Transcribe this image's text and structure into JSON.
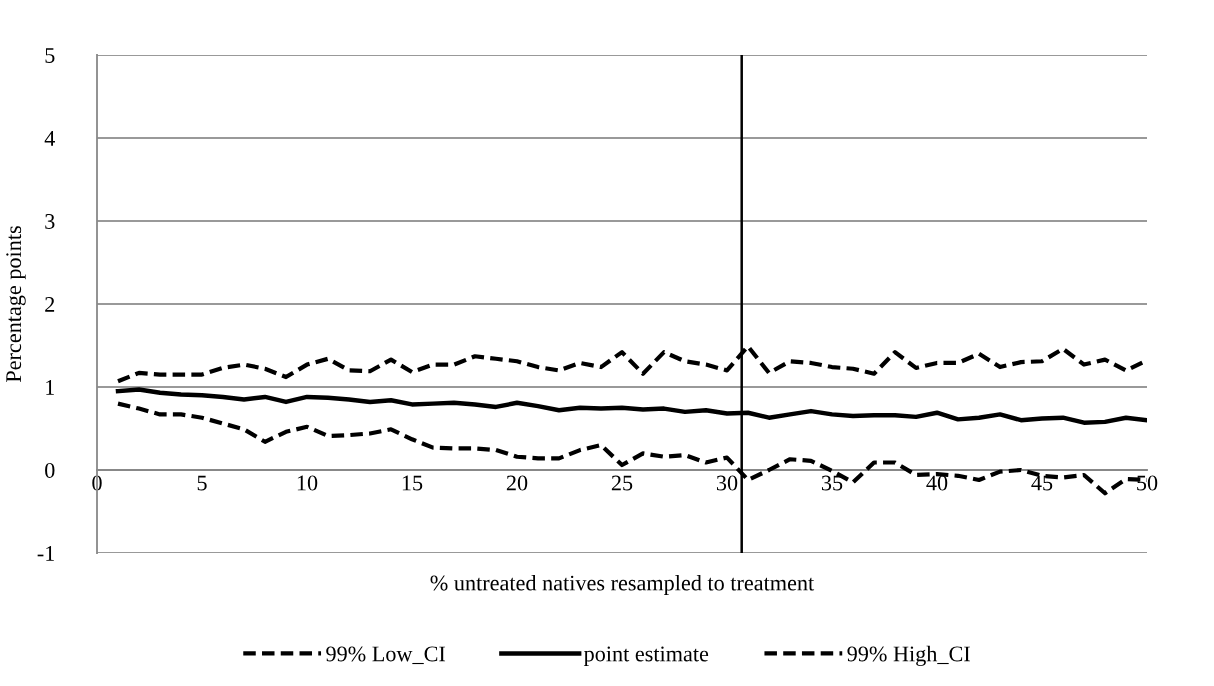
{
  "chart_data": {
    "type": "line",
    "xlabel": "% untreated natives resampled to treatment",
    "ylabel": "Percentage points",
    "x": [
      1,
      2,
      3,
      4,
      5,
      6,
      7,
      8,
      9,
      10,
      11,
      12,
      13,
      14,
      15,
      16,
      17,
      18,
      19,
      20,
      21,
      22,
      23,
      24,
      25,
      26,
      27,
      28,
      29,
      30,
      31,
      32,
      33,
      34,
      35,
      36,
      37,
      38,
      39,
      40,
      41,
      42,
      43,
      44,
      45,
      46,
      47,
      48,
      49,
      50
    ],
    "xlim": [
      0,
      50
    ],
    "xticks": [
      0,
      5,
      10,
      15,
      20,
      25,
      30,
      35,
      40,
      45,
      50
    ],
    "ylim": [
      -1,
      5
    ],
    "yticks": [
      -1,
      0,
      1,
      2,
      3,
      4,
      5
    ],
    "grid": "y",
    "legend": "bottom",
    "series": [
      {
        "name": "99% Low_CI",
        "color": "#000000",
        "line_style": "dashed",
        "values": [
          0.8,
          0.74,
          0.67,
          0.67,
          0.63,
          0.56,
          0.49,
          0.34,
          0.46,
          0.52,
          0.41,
          0.42,
          0.44,
          0.49,
          0.37,
          0.27,
          0.26,
          0.26,
          0.24,
          0.16,
          0.14,
          0.14,
          0.24,
          0.3,
          0.06,
          0.2,
          0.16,
          0.18,
          0.09,
          0.15,
          -0.12,
          0.0,
          0.13,
          0.11,
          -0.01,
          -0.15,
          0.09,
          0.09,
          -0.06,
          -0.05,
          -0.07,
          -0.12,
          -0.02,
          0.0,
          -0.07,
          -0.09,
          -0.06,
          -0.28,
          -0.11,
          -0.12
        ]
      },
      {
        "name": "point estimate",
        "color": "#000000",
        "line_style": "solid",
        "values": [
          0.95,
          0.97,
          0.93,
          0.91,
          0.9,
          0.88,
          0.85,
          0.88,
          0.82,
          0.88,
          0.87,
          0.85,
          0.82,
          0.84,
          0.79,
          0.8,
          0.81,
          0.79,
          0.76,
          0.81,
          0.77,
          0.72,
          0.75,
          0.74,
          0.75,
          0.73,
          0.74,
          0.7,
          0.72,
          0.68,
          0.69,
          0.63,
          0.67,
          0.71,
          0.67,
          0.65,
          0.66,
          0.66,
          0.64,
          0.69,
          0.61,
          0.63,
          0.67,
          0.6,
          0.62,
          0.63,
          0.57,
          0.58,
          0.63,
          0.6
        ]
      },
      {
        "name": "99% High_CI",
        "color": "#000000",
        "line_style": "dashed",
        "values": [
          1.07,
          1.17,
          1.15,
          1.15,
          1.15,
          1.23,
          1.27,
          1.22,
          1.12,
          1.27,
          1.34,
          1.2,
          1.19,
          1.33,
          1.18,
          1.27,
          1.27,
          1.37,
          1.34,
          1.31,
          1.24,
          1.2,
          1.29,
          1.24,
          1.42,
          1.16,
          1.42,
          1.31,
          1.27,
          1.2,
          1.49,
          1.17,
          1.31,
          1.29,
          1.24,
          1.22,
          1.16,
          1.42,
          1.23,
          1.29,
          1.29,
          1.4,
          1.24,
          1.3,
          1.31,
          1.46,
          1.27,
          1.33,
          1.2,
          1.32
        ]
      }
    ],
    "ref_lines": [
      {
        "axis": "x",
        "value": 30.7,
        "color": "#000000",
        "line_style": "solid"
      }
    ]
  }
}
